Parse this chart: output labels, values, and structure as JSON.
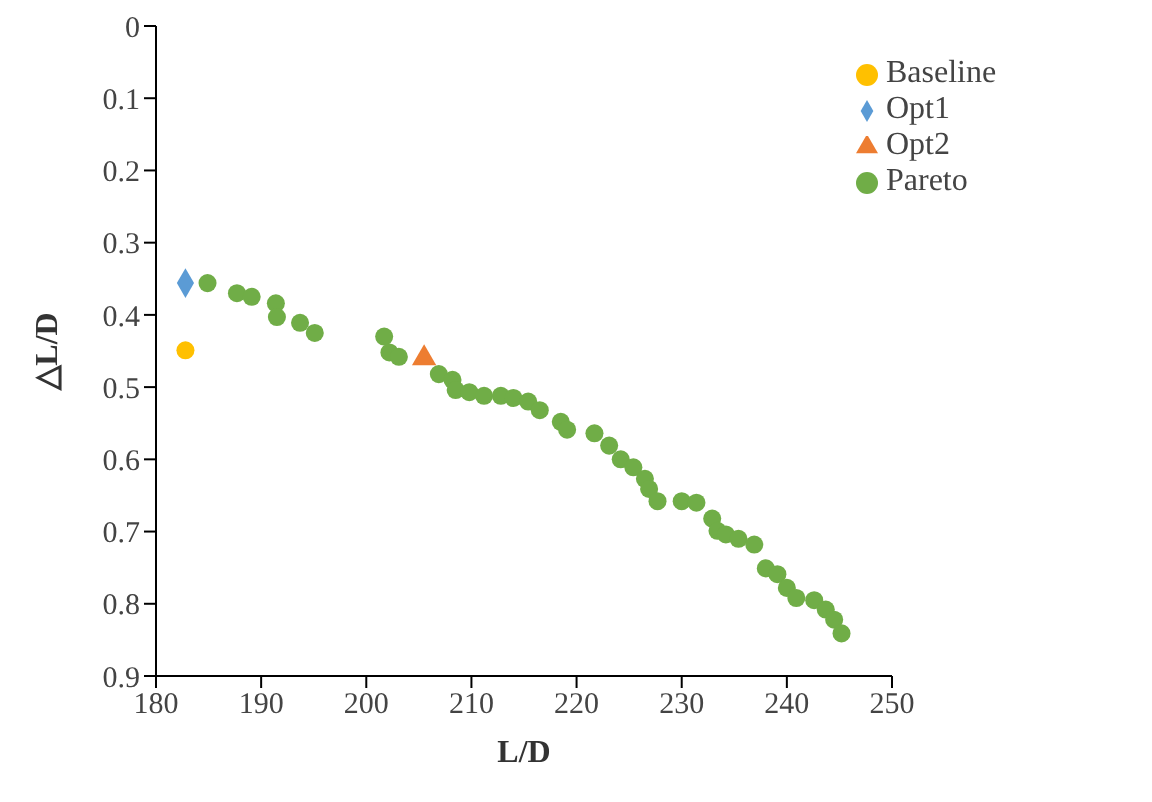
{
  "chart_data": {
    "type": "scatter",
    "xlabel": "L/D",
    "ylabel": "△L/D",
    "xlim": [
      180,
      250
    ],
    "xticks": [
      180,
      190,
      200,
      210,
      220,
      230,
      240,
      250
    ],
    "ylim": [
      0.9,
      0
    ],
    "yticks": [
      0,
      0.1,
      0.2,
      0.3,
      0.4,
      0.5,
      0.6,
      0.7,
      0.8,
      0.9
    ],
    "grid": false,
    "legend": "top right",
    "series": [
      {
        "name": "Pareto",
        "color": "#70ad47",
        "marker": "circle",
        "x": [
          184.9,
          187.7,
          189.1,
          191.4,
          191.5,
          193.7,
          195.1,
          201.7,
          202.2,
          203.1,
          206.9,
          208.2,
          208.5,
          209.8,
          211.2,
          212.8,
          214,
          215.4,
          216.5,
          218.5,
          219.1,
          221.7,
          223.1,
          224.2,
          225.4,
          226.5,
          226.9,
          227.7,
          230,
          231.4,
          232.9,
          233.4,
          234.2,
          235.4,
          236.9,
          238,
          239.1,
          240,
          240.9,
          242.6,
          243.7,
          244.5,
          245.2
        ],
        "values": [
          0.356,
          0.37,
          0.375,
          0.384,
          0.403,
          0.411,
          0.425,
          0.43,
          0.452,
          0.458,
          0.482,
          0.49,
          0.504,
          0.507,
          0.512,
          0.512,
          0.515,
          0.52,
          0.532,
          0.548,
          0.559,
          0.564,
          0.581,
          0.6,
          0.611,
          0.627,
          0.641,
          0.658,
          0.658,
          0.66,
          0.682,
          0.699,
          0.704,
          0.71,
          0.718,
          0.751,
          0.759,
          0.778,
          0.792,
          0.795,
          0.808,
          0.822,
          0.841
        ]
      },
      {
        "name": "Opt1",
        "color": "#5b9bd5",
        "marker": "diamond",
        "x": [
          182.8
        ],
        "values": [
          0.356
        ]
      },
      {
        "name": "Opt2",
        "color": "#ed7d31",
        "marker": "triangle",
        "x": [
          205.5
        ],
        "values": [
          0.46
        ]
      },
      {
        "name": "Baseline",
        "color": "#ffc000",
        "marker": "circle",
        "x": [
          182.8
        ],
        "values": [
          0.449
        ]
      }
    ]
  }
}
